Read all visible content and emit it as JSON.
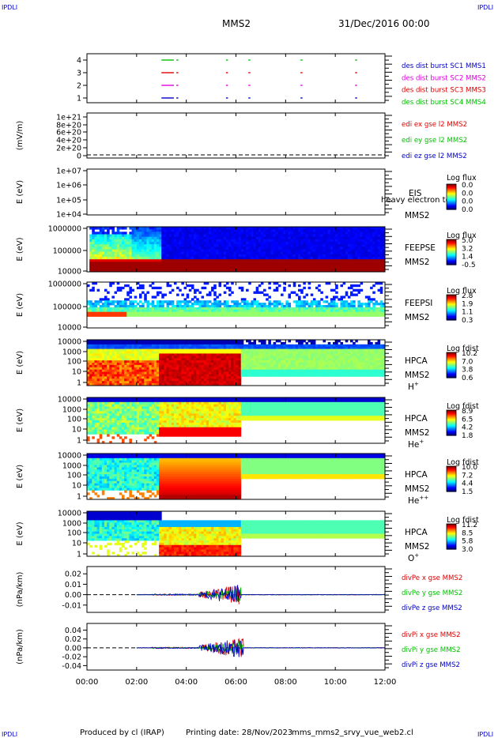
{
  "header": {
    "corner_tl": "IPDLI",
    "corner_tr": "IPDLI",
    "corner_bl": "IPDLI",
    "corner_br": "IPDLI",
    "spacecraft": "MMS2",
    "date": "31/Dec/2016 00:00"
  },
  "footer": {
    "produced_by": "Produced by cl (IRAP)",
    "printing_date": "Printing date: 28/Nov/2023",
    "file_name": "mms_mms2_srvy_vue_web2.cl"
  },
  "colors": {
    "blue": "#0000c8",
    "magenta": "#e000e0",
    "red": "#e00000",
    "green": "#00c000"
  },
  "chart_data": {
    "type": "heatmap",
    "x_tick_labels": [
      "00:00",
      "02:00",
      "04:00",
      "06:00",
      "08:00",
      "10:00",
      "12:00"
    ],
    "x_range_hours": [
      0,
      12
    ],
    "panels": [
      {
        "id": "burst",
        "y_tick_labels": [
          "4",
          "3",
          "2",
          "1"
        ],
        "legend": [
          {
            "text": "des dist burst SC1 MMS1",
            "color": "#0000c8"
          },
          {
            "text": "des dist burst SC2 MMS2",
            "color": "#e000e0"
          },
          {
            "text": "des dist burst SC3 MMS3",
            "color": "#e00000"
          },
          {
            "text": "des dist burst SC4 MMS4",
            "color": "#00c000"
          }
        ],
        "burst_rows": [
          {
            "level": 4,
            "color": "#00c000",
            "times": [
              3.6,
              5.6,
              6.5,
              8.6,
              10.8
            ]
          },
          {
            "level": 3,
            "color": "#e00000",
            "times": [
              3.6,
              5.6,
              6.5,
              8.6,
              10.8
            ]
          },
          {
            "level": 2,
            "color": "#e000e0",
            "times": [
              3.6,
              5.6,
              6.5,
              8.6,
              10.8
            ]
          },
          {
            "level": 1,
            "color": "#0000c8",
            "times": [
              3.6,
              5.6,
              6.5,
              8.6,
              10.8
            ]
          }
        ],
        "burst_start_hours": [
          3.0,
          3.5
        ]
      },
      {
        "id": "edi",
        "ylabel": "(mV/m)",
        "y_tick_labels": [
          "1e+21",
          "8e+20",
          "6e+20",
          "4e+20",
          "2e+20",
          "0"
        ],
        "legend": [
          {
            "text": "edi ex gse l2 MMS2",
            "color": "#e00000"
          },
          {
            "text": "edi ey gse l2 MMS2",
            "color": "#00c000"
          },
          {
            "text": "edi ez gse l2 MMS2",
            "color": "#0000c8"
          }
        ]
      },
      {
        "id": "eis",
        "ylabel": "E (eV)",
        "y_tick_labels": [
          "1e+07",
          "1e+06",
          "1e+05",
          "1e+04"
        ],
        "instrument": "EIS",
        "species_overlay": "heavy electron to",
        "spacecraft": "MMS2",
        "cb_title": "Log flux",
        "cb_ticks": [
          "0.0",
          "0.0",
          "0.0",
          "0.0"
        ]
      },
      {
        "id": "feepse",
        "ylabel": "E (eV)",
        "y_tick_labels": [
          "1000000",
          "100000",
          "10000"
        ],
        "instrument": "FEEPSE",
        "spacecraft": "MMS2",
        "cb_title": "Log flux",
        "cb_ticks": [
          "5.0",
          "3.2",
          "1.4",
          "-0.5"
        ]
      },
      {
        "id": "feepsi",
        "ylabel": "E (eV)",
        "y_tick_labels": [
          "1000000",
          "100000",
          "10000"
        ],
        "instrument": "FEEPSI",
        "spacecraft": "MMS2",
        "cb_title": "Log flux",
        "cb_ticks": [
          "2.8",
          "1.9",
          "1.1",
          "0.3"
        ]
      },
      {
        "id": "hpca_h",
        "ylabel": "E (eV)",
        "y_tick_labels": [
          "10000",
          "1000",
          "100",
          "10",
          "1"
        ],
        "instrument": "HPCA",
        "spacecraft": "MMS2",
        "species": "H",
        "species_sup": "+",
        "cb_title": "Log fdist",
        "cb_ticks": [
          "10.2",
          "7.0",
          "3.8",
          "0.6"
        ]
      },
      {
        "id": "hpca_he",
        "ylabel": "E (eV)",
        "y_tick_labels": [
          "10000",
          "1000",
          "100",
          "10",
          "1"
        ],
        "instrument": "HPCA",
        "spacecraft": "MMS2",
        "species": "He",
        "species_sup": "+",
        "cb_title": "Log fdist",
        "cb_ticks": [
          "8.9",
          "6.5",
          "4.2",
          "1.8"
        ]
      },
      {
        "id": "hpca_hepp",
        "ylabel": "E (eV)",
        "y_tick_labels": [
          "10000",
          "1000",
          "100",
          "10",
          "1"
        ],
        "instrument": "HPCA",
        "spacecraft": "MMS2",
        "species": "He",
        "species_sup": "++",
        "cb_title": "Log fdist",
        "cb_ticks": [
          "10.0",
          "7.2",
          "4.4",
          "1.5"
        ]
      },
      {
        "id": "hpca_o",
        "ylabel": "E (eV)",
        "y_tick_labels": [
          "10000",
          "1000",
          "100",
          "10",
          "1"
        ],
        "instrument": "HPCA",
        "spacecraft": "MMS2",
        "species": "O",
        "species_sup": "+",
        "cb_title": "Log fdist",
        "cb_ticks": [
          "11.2",
          "8.5",
          "5.8",
          "3.0"
        ]
      },
      {
        "id": "divpe",
        "ylabel": "(nPa/km)",
        "y_tick_labels": [
          "0.02",
          "0.01",
          "0.00",
          "-0.01"
        ],
        "y_ticks": [
          0.02,
          0.01,
          0.0,
          -0.01
        ],
        "ylim": [
          -0.017,
          0.027
        ],
        "active_hours": [
          2.0,
          12.0
        ],
        "burst_hours": [
          4.5,
          6.2
        ],
        "legend": [
          {
            "text": "divPe x gse MMS2",
            "color": "#e00000"
          },
          {
            "text": "divPe y gse MMS2",
            "color": "#00c000"
          },
          {
            "text": "divPe z gse MMS2",
            "color": "#0000c8"
          }
        ]
      },
      {
        "id": "divpi",
        "ylabel": "(nPa/km)",
        "y_tick_labels": [
          "0.04",
          "0.02",
          "0.00",
          "-0.02",
          "-0.04"
        ],
        "y_ticks": [
          0.04,
          0.02,
          0.0,
          -0.02,
          -0.04
        ],
        "ylim": [
          -0.05,
          0.055
        ],
        "active_hours": [
          2.0,
          12.0
        ],
        "burst_hours": [
          4.5,
          6.3
        ],
        "legend": [
          {
            "text": "divPi x gse MMS2",
            "color": "#e00000"
          },
          {
            "text": "divPi y gse MMS2",
            "color": "#00c000"
          },
          {
            "text": "divPi z gse MMS2",
            "color": "#0000c8"
          }
        ]
      }
    ]
  }
}
